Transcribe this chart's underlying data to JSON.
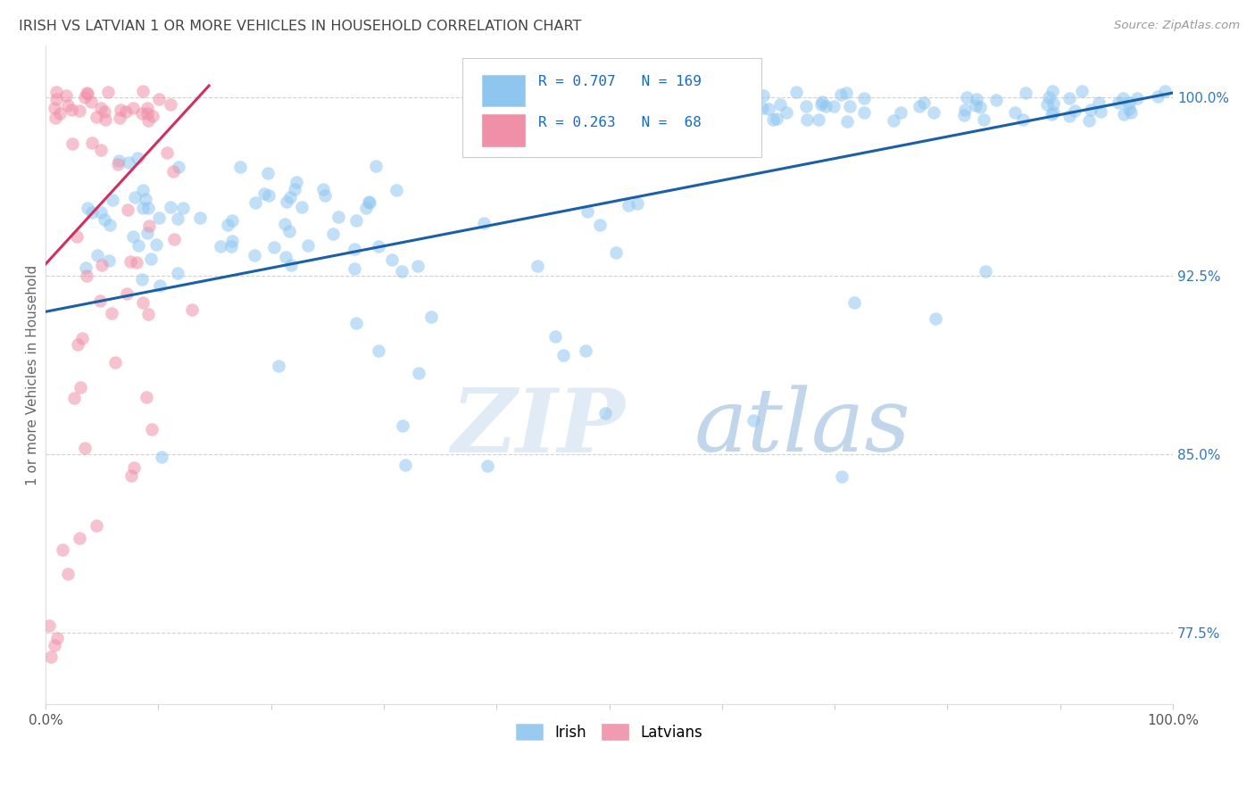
{
  "title": "IRISH VS LATVIAN 1 OR MORE VEHICLES IN HOUSEHOLD CORRELATION CHART",
  "source": "Source: ZipAtlas.com",
  "ylabel": "1 or more Vehicles in Household",
  "ylabel_labels": [
    "77.5%",
    "85.0%",
    "92.5%",
    "100.0%"
  ],
  "ylabel_values": [
    0.775,
    0.85,
    0.925,
    1.0
  ],
  "xmin": 0.0,
  "xmax": 1.0,
  "ymin": 0.745,
  "ymax": 1.022,
  "irish_R": 0.707,
  "irish_N": 169,
  "latvian_R": 0.263,
  "latvian_N": 68,
  "irish_color": "#8ec6f0",
  "latvian_color": "#f090a8",
  "irish_line_color": "#1a5fa8",
  "latvian_line_color": "#d03060",
  "legend_R_color": "#1a6abf",
  "watermark_zip": "ZIP",
  "watermark_atlas": "atlas",
  "background_color": "#ffffff",
  "grid_color": "#cccccc",
  "title_color": "#444444",
  "axis_label_color": "#666666",
  "right_label_color": "#3377bb",
  "irish_line_x": [
    0.0,
    1.0
  ],
  "irish_line_y": [
    0.91,
    1.002
  ],
  "latvian_line_x": [
    0.0,
    0.145
  ],
  "latvian_line_y": [
    0.93,
    1.005
  ]
}
